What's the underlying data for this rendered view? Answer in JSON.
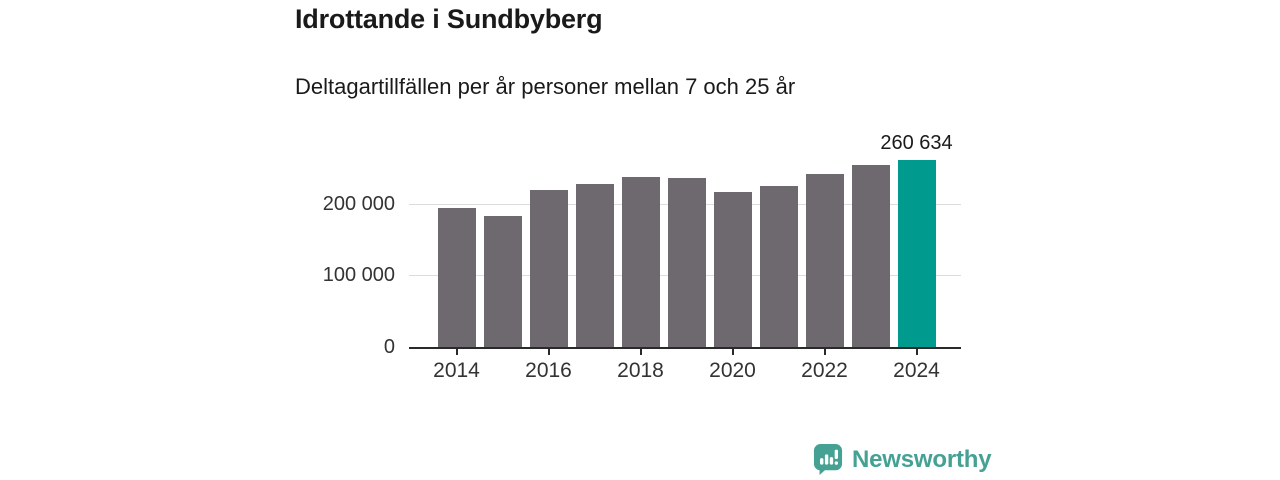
{
  "header": {
    "title": "Idrottande i Sundbyberg",
    "subtitle": "Deltagartillfällen per år personer mellan 7 och 25 år"
  },
  "chart_data": {
    "type": "bar",
    "title": "Idrottande i Sundbyberg",
    "subtitle": "Deltagartillfällen per år personer mellan 7 och 25 år",
    "categories": [
      2014,
      2015,
      2016,
      2017,
      2018,
      2019,
      2020,
      2021,
      2022,
      2023,
      2024
    ],
    "values": [
      194000,
      182500,
      219500,
      227000,
      237500,
      235500,
      216500,
      224000,
      242000,
      253500,
      260634
    ],
    "highlight_index": 10,
    "highlight_label": "260 634",
    "ylim": [
      0,
      270000
    ],
    "yticks": [
      {
        "label": "0",
        "value": 0
      },
      {
        "label": "100 000",
        "value": 100000
      },
      {
        "label": "200 000",
        "value": 200000
      }
    ],
    "xtick_labels": [
      "2014",
      "2016",
      "2018",
      "2020",
      "2022",
      "2024"
    ],
    "xtick_indices": [
      0,
      2,
      4,
      6,
      8,
      10
    ],
    "grid": "horizontal",
    "legend": "none",
    "bar_color": "#6d696e",
    "highlight_color": "#009a8e",
    "grid_color": "#dcdcdc",
    "axis_color": "#2a2a2a",
    "tick_text_color": "#333333"
  },
  "footer": {
    "brand": "Newsworthy",
    "accent": "#45a193",
    "icon": "newsworthy-chart-bubble-icon"
  }
}
